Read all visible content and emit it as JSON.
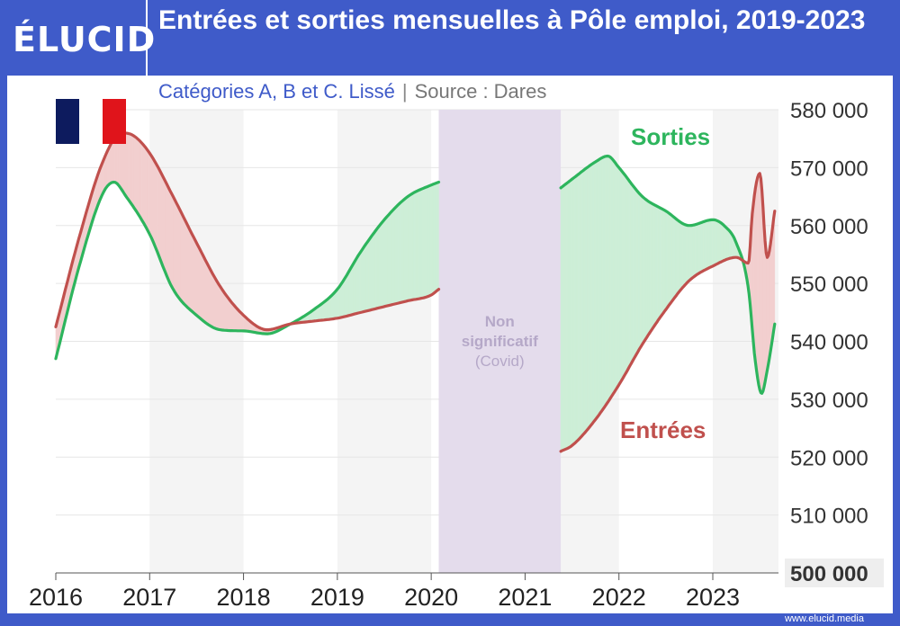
{
  "header": {
    "logo_text": "ÉLUCID",
    "title": "Entrées et sorties mensuelles à Pôle emploi, 2019-2023",
    "subtitle": "Catégories A, B et C. Lissé",
    "separator": "|",
    "source": "Source : Dares"
  },
  "footer": {
    "url": "www.elucid.media"
  },
  "colors": {
    "background": "#3f5bc9",
    "entrees": "#c0504d",
    "sorties": "#2db55d",
    "fill_entrees_above": "#f2cfcf",
    "fill_sorties_above": "#cdeed7",
    "covid_band": "#e4dcec"
  },
  "chart_data": {
    "type": "line",
    "title": "Entrées et sorties mensuelles à Pôle emploi, 2019-2023",
    "subtitle": "Catégories A, B et C. Lissé",
    "xlabel": "",
    "ylabel": "",
    "xlim": [
      2016,
      2023.7
    ],
    "ylim": [
      500000,
      580000
    ],
    "x_ticks": [
      2016,
      2017,
      2018,
      2019,
      2020,
      2021,
      2022,
      2023
    ],
    "x_tick_labels": [
      "2016",
      "2017",
      "2018",
      "2019",
      "2020",
      "2021",
      "2022",
      "2023"
    ],
    "y_ticks": [
      500000,
      510000,
      520000,
      530000,
      540000,
      550000,
      560000,
      570000,
      580000
    ],
    "y_tick_labels": [
      "500 000",
      "510 000",
      "520 000",
      "530 000",
      "540 000",
      "550 000",
      "560 000",
      "570 000",
      "580 000"
    ],
    "grid": "horizontal",
    "axis_side": "right",
    "shaded_region": {
      "x_start": 2020.08,
      "x_end": 2021.38,
      "label_lines": [
        "Non",
        "significatif",
        "(Covid)"
      ]
    },
    "series": [
      {
        "name": "Entrées",
        "color": "#c0504d",
        "segments": [
          {
            "x": [
              2016.0,
              2016.25,
              2016.5,
              2016.7,
              2016.83,
              2017.0,
              2017.25,
              2017.5,
              2017.75,
              2018.0,
              2018.25,
              2018.5,
              2018.75,
              2019.0,
              2019.25,
              2019.5,
              2019.75,
              2020.0,
              2020.08
            ],
            "y": [
              542500,
              558000,
              571000,
              576000,
              575500,
              572500,
              565000,
              557000,
              549500,
              544500,
              542000,
              543000,
              543500,
              544000,
              545000,
              546000,
              547000,
              548000,
              549000
            ]
          },
          {
            "x": [
              2021.38,
              2021.5,
              2021.75,
              2022.0,
              2022.25,
              2022.5,
              2022.75,
              2023.0,
              2023.25,
              2023.38,
              2023.42,
              2023.5,
              2023.58,
              2023.66
            ],
            "y": [
              521000,
              522000,
              526500,
              532500,
              539500,
              545500,
              550500,
              553000,
              554500,
              553500,
              562000,
              569000,
              554500,
              562500
            ]
          }
        ]
      },
      {
        "name": "Sorties",
        "color": "#2db55d",
        "segments": [
          {
            "x": [
              2016.0,
              2016.25,
              2016.5,
              2016.62,
              2016.75,
              2017.0,
              2017.25,
              2017.5,
              2017.75,
              2018.0,
              2018.25,
              2018.5,
              2018.75,
              2019.0,
              2019.25,
              2019.5,
              2019.75,
              2020.0,
              2020.08
            ],
            "y": [
              537000,
              553000,
              565500,
              567500,
              565000,
              558500,
              549000,
              544500,
              542000,
              541800,
              541300,
              543000,
              545500,
              549000,
              555500,
              561000,
              565000,
              567000,
              567500
            ]
          },
          {
            "x": [
              2021.38,
              2021.5,
              2021.75,
              2021.88,
              2022.0,
              2022.25,
              2022.5,
              2022.75,
              2023.0,
              2023.12,
              2023.25,
              2023.38,
              2023.45,
              2023.52,
              2023.58,
              2023.66
            ],
            "y": [
              566500,
              568000,
              571000,
              572000,
              570000,
              565000,
              562500,
              560000,
              561000,
              560000,
              557000,
              549000,
              537000,
              531000,
              535000,
              543000
            ]
          }
        ]
      }
    ],
    "annotations": [
      {
        "text": "Sorties",
        "series": "Sorties"
      },
      {
        "text": "Entrées",
        "series": "Entrées"
      }
    ]
  }
}
